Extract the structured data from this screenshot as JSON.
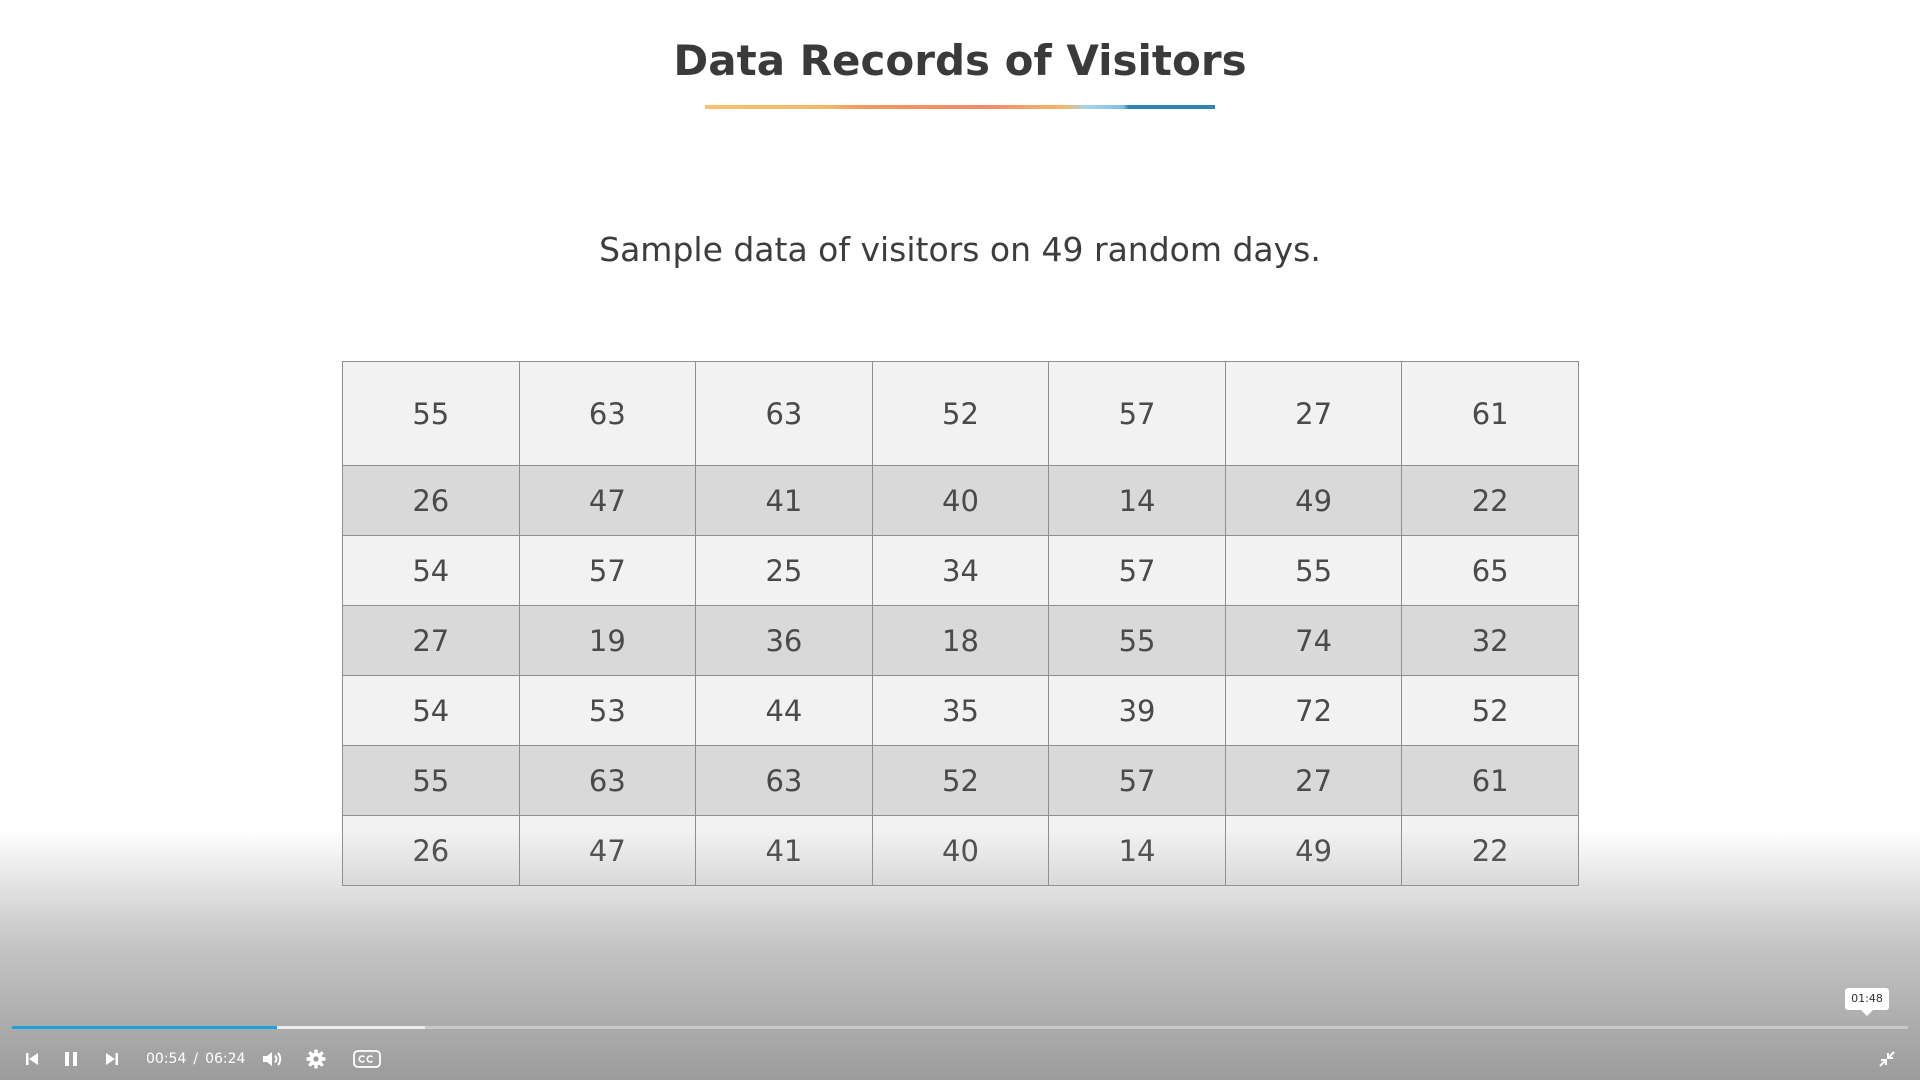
{
  "slide": {
    "title": "Data Records of Visitors",
    "subtitle": "Sample data of visitors on 49 random days.",
    "table_rows": [
      [
        "55",
        "63",
        "63",
        "52",
        "57",
        "27",
        "61"
      ],
      [
        "26",
        "47",
        "41",
        "40",
        "14",
        "49",
        "22"
      ],
      [
        "54",
        "57",
        "25",
        "34",
        "57",
        "55",
        "65"
      ],
      [
        "27",
        "19",
        "36",
        "18",
        "55",
        "74",
        "32"
      ],
      [
        "54",
        "53",
        "44",
        "35",
        "39",
        "72",
        "52"
      ],
      [
        "55",
        "63",
        "63",
        "52",
        "57",
        "27",
        "61"
      ],
      [
        "26",
        "47",
        "41",
        "40",
        "14",
        "49",
        "22"
      ]
    ]
  },
  "player": {
    "current_time": "00:54",
    "time_separator": "/",
    "duration": "06:24",
    "hover_time": "01:48",
    "progress_fraction": 0.14,
    "buffered_fraction": 0.218,
    "accent_color": "#1e9fe0",
    "icons": {
      "skip_back": "skip-back-icon",
      "pause": "pause-icon",
      "skip_forward": "skip-forward-icon",
      "volume": "volume-icon",
      "settings": "gear-icon",
      "captions": "closed-captions-icon",
      "exit_fullscreen": "exit-fullscreen-icon"
    }
  }
}
